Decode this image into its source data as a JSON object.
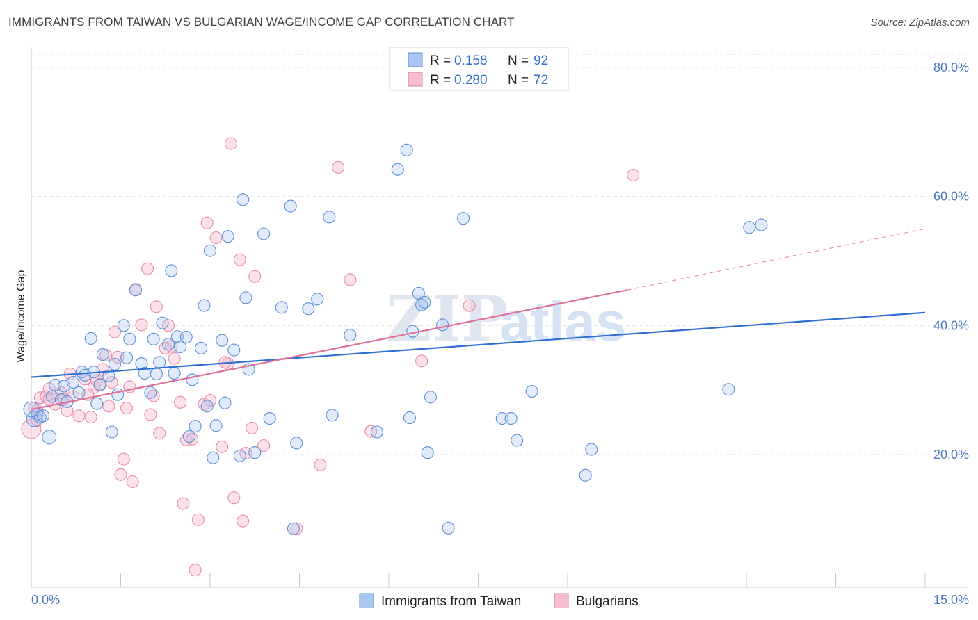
{
  "title": "IMMIGRANTS FROM TAIWAN VS BULGARIAN WAGE/INCOME GAP CORRELATION CHART",
  "source": "Source: ZipAtlas.com",
  "watermark": "ZIPatlas",
  "legend": {
    "rows": [
      {
        "r_label": "R =",
        "r_value": "0.158",
        "n_label": "N =",
        "n_value": "92",
        "color": "#a9c7f0",
        "stroke": "#5b8fd8"
      },
      {
        "r_label": "R =",
        "r_value": "0.280",
        "n_label": "N =",
        "n_value": "72",
        "color": "#f6bfd0",
        "stroke": "#e07ba0"
      }
    ]
  },
  "bottom_legend": [
    {
      "label": "Immigrants from Taiwan",
      "color": "#a9c7f0",
      "stroke": "#5b8fd8"
    },
    {
      "label": "Bulgarians",
      "color": "#f6bfd0",
      "stroke": "#e07ba0"
    }
  ],
  "chart_data": {
    "type": "scatter",
    "title": "IMMIGRANTS FROM TAIWAN VS BULGARIAN WAGE/INCOME GAP CORRELATION CHART",
    "xlabel": "",
    "ylabel": "Wage/Income Gap",
    "xlim": [
      0,
      15
    ],
    "ylim": [
      0,
      80
    ],
    "x_tick_labels": [
      "0.0%",
      "15.0%"
    ],
    "y_tick_labels": [
      "20.0%",
      "40.0%",
      "60.0%",
      "80.0%"
    ],
    "y_ticks": [
      20,
      40,
      60,
      80
    ],
    "grid": true,
    "series": [
      {
        "name": "Immigrants from Taiwan",
        "color": "#6f9fe0",
        "trend": {
          "x0": 0,
          "y0": 32.0,
          "x1": 15,
          "y1": 42.0,
          "color": "#2f6fd1"
        },
        "points": [
          [
            0.05,
            25.5
          ],
          [
            0.1,
            26.3
          ],
          [
            0.15,
            25.8
          ],
          [
            0.2,
            26.0
          ],
          [
            0.3,
            22.7
          ],
          [
            0.35,
            29.0
          ],
          [
            0.4,
            30.8
          ],
          [
            0.5,
            28.5
          ],
          [
            0.55,
            30.6
          ],
          [
            0.6,
            28.2
          ],
          [
            0.7,
            31.2
          ],
          [
            0.8,
            29.6
          ],
          [
            0.85,
            32.8
          ],
          [
            0.9,
            32.3
          ],
          [
            1.0,
            38.0
          ],
          [
            1.05,
            32.8
          ],
          [
            1.1,
            27.9
          ],
          [
            1.15,
            30.8
          ],
          [
            1.2,
            35.5
          ],
          [
            1.3,
            32.2
          ],
          [
            1.35,
            23.5
          ],
          [
            1.4,
            34.0
          ],
          [
            1.45,
            29.3
          ],
          [
            1.55,
            40.0
          ],
          [
            1.6,
            35.0
          ],
          [
            1.65,
            37.9
          ],
          [
            1.75,
            45.5
          ],
          [
            1.85,
            34.1
          ],
          [
            1.9,
            32.6
          ],
          [
            2.0,
            29.6
          ],
          [
            2.05,
            37.9
          ],
          [
            2.1,
            32.5
          ],
          [
            2.15,
            34.3
          ],
          [
            2.2,
            40.4
          ],
          [
            2.3,
            37.1
          ],
          [
            2.35,
            48.5
          ],
          [
            2.4,
            32.6
          ],
          [
            2.45,
            38.3
          ],
          [
            2.5,
            36.7
          ],
          [
            2.6,
            38.2
          ],
          [
            2.65,
            22.8
          ],
          [
            2.7,
            31.6
          ],
          [
            2.75,
            24.4
          ],
          [
            2.85,
            36.5
          ],
          [
            2.9,
            43.1
          ],
          [
            2.95,
            27.5
          ],
          [
            3.0,
            51.6
          ],
          [
            3.05,
            19.5
          ],
          [
            3.1,
            24.5
          ],
          [
            3.2,
            37.7
          ],
          [
            3.25,
            28.0
          ],
          [
            3.3,
            53.8
          ],
          [
            3.4,
            36.2
          ],
          [
            3.5,
            19.8
          ],
          [
            3.55,
            59.5
          ],
          [
            3.6,
            44.3
          ],
          [
            3.65,
            33.2
          ],
          [
            3.75,
            20.3
          ],
          [
            3.9,
            54.2
          ],
          [
            4.0,
            25.6
          ],
          [
            4.2,
            42.8
          ],
          [
            4.35,
            58.5
          ],
          [
            4.4,
            8.5
          ],
          [
            4.45,
            21.8
          ],
          [
            4.65,
            42.6
          ],
          [
            4.8,
            44.1
          ],
          [
            5.0,
            56.8
          ],
          [
            5.05,
            26.1
          ],
          [
            5.35,
            38.5
          ],
          [
            5.8,
            23.5
          ],
          [
            6.15,
            64.2
          ],
          [
            6.3,
            67.2
          ],
          [
            6.35,
            25.7
          ],
          [
            6.4,
            39.1
          ],
          [
            6.5,
            45.0
          ],
          [
            6.55,
            43.2
          ],
          [
            6.6,
            43.6
          ],
          [
            6.65,
            20.3
          ],
          [
            6.7,
            28.9
          ],
          [
            6.9,
            40.1
          ],
          [
            7.0,
            8.6
          ],
          [
            7.25,
            56.6
          ],
          [
            7.9,
            25.6
          ],
          [
            8.05,
            25.6
          ],
          [
            8.15,
            22.2
          ],
          [
            8.4,
            29.8
          ],
          [
            9.4,
            20.8
          ],
          [
            9.3,
            16.8
          ],
          [
            11.7,
            30.1
          ],
          [
            12.05,
            55.2
          ],
          [
            12.25,
            55.6
          ],
          [
            0.0,
            27.0
          ]
        ]
      },
      {
        "name": "Bulgarians",
        "color": "#ee94b3",
        "trend": {
          "x0": 0,
          "y0": 27.0,
          "x1": 10.0,
          "y1": 45.5,
          "dash_to_x": 15,
          "dash_to_y": 55.0,
          "color": "#e07098"
        },
        "points": [
          [
            0.0,
            24.0
          ],
          [
            0.05,
            27.2
          ],
          [
            0.1,
            26.8
          ],
          [
            0.15,
            28.8
          ],
          [
            0.25,
            29.0
          ],
          [
            0.3,
            30.2
          ],
          [
            0.4,
            27.8
          ],
          [
            0.5,
            29.6
          ],
          [
            0.55,
            28.6
          ],
          [
            0.65,
            32.5
          ],
          [
            0.7,
            29.0
          ],
          [
            0.8,
            26.0
          ],
          [
            0.9,
            31.7
          ],
          [
            1.0,
            25.8
          ],
          [
            1.05,
            30.4
          ],
          [
            1.1,
            31.5
          ],
          [
            1.2,
            33.2
          ],
          [
            1.25,
            35.4
          ],
          [
            1.3,
            27.5
          ],
          [
            1.35,
            31.2
          ],
          [
            1.4,
            39.0
          ],
          [
            1.45,
            35.1
          ],
          [
            1.5,
            16.9
          ],
          [
            1.55,
            19.3
          ],
          [
            1.6,
            27.2
          ],
          [
            1.65,
            30.5
          ],
          [
            1.7,
            15.8
          ],
          [
            1.75,
            45.6
          ],
          [
            1.85,
            40.1
          ],
          [
            1.95,
            48.8
          ],
          [
            2.0,
            26.2
          ],
          [
            2.05,
            29.1
          ],
          [
            2.1,
            42.9
          ],
          [
            2.15,
            23.3
          ],
          [
            2.25,
            36.5
          ],
          [
            2.3,
            40.0
          ],
          [
            2.4,
            34.9
          ],
          [
            2.5,
            28.1
          ],
          [
            2.55,
            12.4
          ],
          [
            2.6,
            22.3
          ],
          [
            2.7,
            22.4
          ],
          [
            2.75,
            2.1
          ],
          [
            2.8,
            9.9
          ],
          [
            2.9,
            27.8
          ],
          [
            2.95,
            55.9
          ],
          [
            3.0,
            28.4
          ],
          [
            3.1,
            53.6
          ],
          [
            3.2,
            21.2
          ],
          [
            3.3,
            34.1
          ],
          [
            3.35,
            68.2
          ],
          [
            3.4,
            13.3
          ],
          [
            3.5,
            50.2
          ],
          [
            3.55,
            9.7
          ],
          [
            3.6,
            20.2
          ],
          [
            3.7,
            24.1
          ],
          [
            3.75,
            47.6
          ],
          [
            3.9,
            21.4
          ],
          [
            4.45,
            8.5
          ],
          [
            4.85,
            18.4
          ],
          [
            5.15,
            64.5
          ],
          [
            5.35,
            47.1
          ],
          [
            5.7,
            23.6
          ],
          [
            6.55,
            34.5
          ],
          [
            7.35,
            43.1
          ],
          [
            10.1,
            63.3
          ],
          [
            0.3,
            28.6
          ],
          [
            0.6,
            26.8
          ],
          [
            0.95,
            29.3
          ],
          [
            1.15,
            30.9
          ],
          [
            2.35,
            36.8
          ],
          [
            3.25,
            34.3
          ],
          [
            0.1,
            25.3
          ]
        ]
      }
    ]
  }
}
